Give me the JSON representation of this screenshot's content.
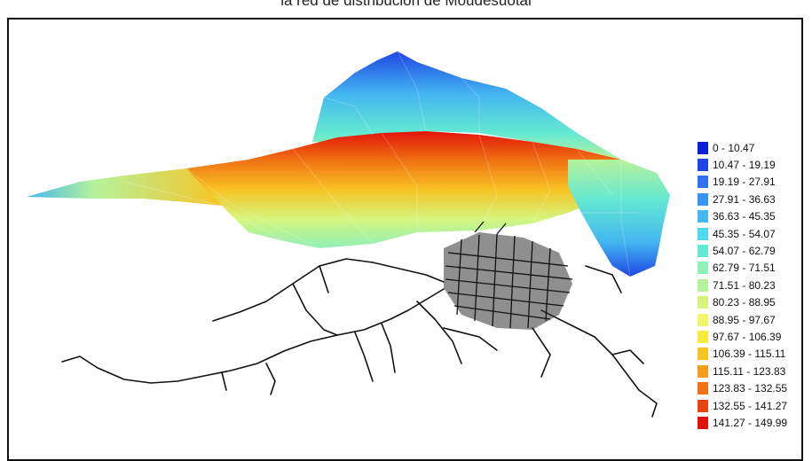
{
  "title": "la red de distribución de Moudesuotal",
  "legend": [
    {
      "label": "0 - 10.47",
      "color": "#0a1fd6"
    },
    {
      "label": "10.47 - 19.19",
      "color": "#1e46e4"
    },
    {
      "label": "19.19 - 27.91",
      "color": "#2f6ff0"
    },
    {
      "label": "27.91 - 36.63",
      "color": "#3a95f2"
    },
    {
      "label": "36.63 - 45.35",
      "color": "#44b7f0"
    },
    {
      "label": "45.35 - 54.07",
      "color": "#4fd9ef"
    },
    {
      "label": "54.07 - 62.79",
      "color": "#63e8d3"
    },
    {
      "label": "62.79 - 71.51",
      "color": "#8ff0b8"
    },
    {
      "label": "71.51 - 80.23",
      "color": "#b6f29b"
    },
    {
      "label": "80.23 - 88.95",
      "color": "#d6f57e"
    },
    {
      "label": "88.95 - 97.67",
      "color": "#f0f86a"
    },
    {
      "label": "97.67 - 106.39",
      "color": "#f9ec3e"
    },
    {
      "label": "106.39 - 115.11",
      "color": "#f8c424"
    },
    {
      "label": "115.11 - 123.83",
      "color": "#f59d1c"
    },
    {
      "label": "123.83 - 132.55",
      "color": "#f07214"
    },
    {
      "label": "132.55 - 141.27",
      "color": "#e8440f"
    },
    {
      "label": "141.27 - 149.99",
      "color": "#e0130a"
    }
  ]
}
